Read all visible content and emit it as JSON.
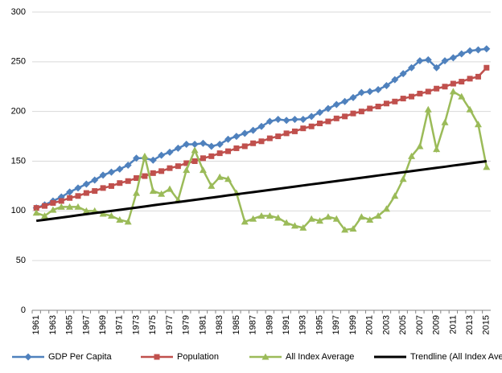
{
  "chart_data": {
    "type": "line",
    "categories": [
      "1961",
      null,
      "1963",
      null,
      "1965",
      null,
      "1967",
      null,
      "1969",
      null,
      "1971",
      null,
      "1973",
      null,
      "1975",
      null,
      "1977",
      null,
      "1979",
      null,
      "1981",
      null,
      "1983",
      null,
      "1985",
      null,
      "1987",
      null,
      "1989",
      null,
      "1991",
      null,
      "1993",
      null,
      "1995",
      null,
      "1997",
      null,
      "1999",
      null,
      "2001",
      null,
      "2003",
      null,
      "2005",
      null,
      "2007",
      null,
      "2009",
      null,
      "2011",
      null,
      "2013",
      null,
      "2015"
    ],
    "series": [
      {
        "name": "GDP Per Capita",
        "color": "#4f81bd",
        "marker": "diamond",
        "values": [
          103,
          106,
          110,
          114,
          119,
          123,
          127,
          131,
          136,
          139,
          142,
          146,
          153,
          153,
          151,
          156,
          159,
          163,
          167,
          167,
          168,
          165,
          167,
          172,
          175,
          178,
          181,
          185,
          190,
          192,
          191,
          192,
          192,
          195,
          199,
          203,
          207,
          210,
          214,
          219,
          220,
          222,
          226,
          232,
          238,
          244,
          251,
          252,
          244,
          251,
          254,
          258,
          261,
          262,
          263
        ]
      },
      {
        "name": "Population",
        "color": "#c0504d",
        "marker": "square",
        "values": [
          103,
          105,
          108,
          110,
          113,
          115,
          118,
          120,
          123,
          125,
          128,
          130,
          133,
          135,
          138,
          140,
          143,
          145,
          148,
          150,
          153,
          155,
          158,
          160,
          163,
          165,
          168,
          170,
          173,
          175,
          178,
          180,
          183,
          185,
          188,
          190,
          193,
          195,
          198,
          200,
          203,
          205,
          208,
          210,
          213,
          215,
          218,
          220,
          223,
          225,
          228,
          230,
          233,
          235,
          244
        ]
      },
      {
        "name": "All Index Average",
        "color": "#9bbb59",
        "marker": "triangle",
        "values": [
          98,
          95,
          101,
          104,
          104,
          104,
          100,
          100,
          97,
          95,
          91,
          89,
          118,
          155,
          120,
          117,
          122,
          111,
          141,
          161,
          141,
          125,
          134,
          132,
          118,
          89,
          92,
          95,
          95,
          93,
          88,
          85,
          83,
          92,
          90,
          94,
          92,
          81,
          82,
          94,
          91,
          95,
          102,
          115,
          132,
          155,
          165,
          202,
          162,
          189,
          220,
          215,
          202,
          187,
          144
        ]
      },
      {
        "name": "Trendline (All Index Average)",
        "color": "#000000",
        "marker": "none",
        "values": [
          90.0,
          91.1,
          92.2,
          93.3,
          94.4,
          95.6,
          96.7,
          97.8,
          98.9,
          100.0,
          101.1,
          102.2,
          103.3,
          104.4,
          105.6,
          106.7,
          107.8,
          108.9,
          110.0,
          111.1,
          112.2,
          113.3,
          114.4,
          115.6,
          116.7,
          117.8,
          118.9,
          120.0,
          121.1,
          122.2,
          123.3,
          124.4,
          125.6,
          126.7,
          127.8,
          128.9,
          130.0,
          131.1,
          132.2,
          133.3,
          134.4,
          135.6,
          136.7,
          137.8,
          138.9,
          140.0,
          141.1,
          142.2,
          143.3,
          144.4,
          145.6,
          146.7,
          147.8,
          148.9,
          150.0
        ]
      }
    ],
    "ylim": [
      0,
      300
    ],
    "yticks": [
      0,
      50,
      100,
      150,
      200,
      250,
      300
    ],
    "grid": true,
    "legend": "bottom"
  }
}
